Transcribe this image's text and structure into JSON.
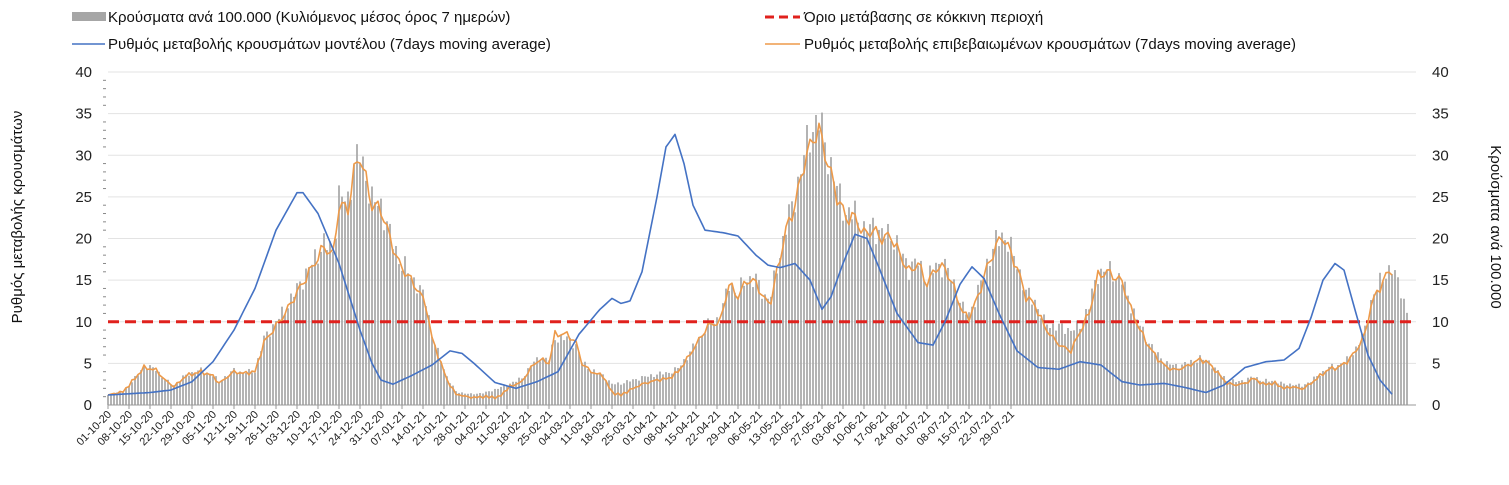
{
  "chart_data": {
    "type": "bar+line",
    "title": "",
    "ylabel_left": "Ρυθμός μεταβολής κρουσμάτων",
    "ylabel_right": "Κρούσματα ανά 100.000",
    "ylim": [
      0,
      40
    ],
    "yticks": [
      "0",
      "5",
      "10",
      "15",
      "20",
      "25",
      "30",
      "35",
      "40"
    ],
    "legend": {
      "bars": "Κρούσματα ανά 100.000 (Κυλιόμενος μέσος όρος 7 ημερών)",
      "threshold": "Όριο μετάβασης σε κόκκινη περιοχή",
      "model": "Ρυθμός μεταβολής κρουσμάτων μοντέλου (7days moving average)",
      "confirmed": "Ρυθμός μεταβολής επιβεβαιωμένων κρουσμάτων (7days moving average)"
    },
    "colors": {
      "bars": "#a6a6a6",
      "threshold": "#e0211d",
      "model": "#4472c4",
      "confirmed": "#ed9a4a"
    },
    "threshold": 10,
    "x_labels": [
      "01-10-20",
      "08-10-20",
      "15-10-20",
      "22-10-20",
      "29-10-20",
      "05-11-20",
      "12-11-20",
      "19-11-20",
      "26-11-20",
      "03-12-20",
      "10-12-20",
      "17-12-20",
      "24-12-20",
      "31-12-20",
      "07-01-21",
      "14-01-21",
      "21-01-21",
      "28-01-21",
      "04-02-21",
      "11-02-21",
      "18-02-21",
      "25-02-21",
      "04-03-21",
      "11-03-21",
      "18-03-21",
      "25-03-21",
      "01-04-21",
      "08-04-21",
      "15-04-21",
      "22-04-21",
      "29-04-21",
      "06-05-21",
      "13-05-21",
      "20-05-21",
      "27-05-21",
      "03-06-21",
      "10-06-21",
      "17-06-21",
      "24-06-21",
      "01-07-21",
      "08-07-21",
      "15-07-21",
      "22-07-21",
      "29-07-21"
    ],
    "model_anchors": [
      [
        0,
        1.2
      ],
      [
        14,
        1.5
      ],
      [
        21,
        1.8
      ],
      [
        28,
        2.8
      ],
      [
        35,
        5.2
      ],
      [
        42,
        9
      ],
      [
        49,
        14
      ],
      [
        56,
        21
      ],
      [
        63,
        25.5
      ],
      [
        65,
        25.5
      ],
      [
        70,
        23
      ],
      [
        77,
        17
      ],
      [
        84,
        9
      ],
      [
        88,
        5
      ],
      [
        91,
        3
      ],
      [
        95,
        2.5
      ],
      [
        101,
        3.5
      ],
      [
        108,
        4.8
      ],
      [
        114,
        6.5
      ],
      [
        118,
        6.2
      ],
      [
        122,
        5
      ],
      [
        129,
        2.7
      ],
      [
        136,
        2
      ],
      [
        143,
        2.8
      ],
      [
        150,
        4
      ],
      [
        157,
        8.5
      ],
      [
        164,
        11.5
      ],
      [
        168,
        12.8
      ],
      [
        171,
        12.2
      ],
      [
        174,
        12.5
      ],
      [
        178,
        16
      ],
      [
        183,
        25
      ],
      [
        186,
        31
      ],
      [
        189,
        32.5
      ],
      [
        192,
        29
      ],
      [
        195,
        24
      ],
      [
        199,
        21
      ],
      [
        205,
        20.7
      ],
      [
        210,
        20.3
      ],
      [
        216,
        18
      ],
      [
        220,
        16.8
      ],
      [
        224,
        16.5
      ],
      [
        229,
        17
      ],
      [
        234,
        15
      ],
      [
        238,
        11.5
      ],
      [
        241,
        13
      ],
      [
        245,
        17
      ],
      [
        249,
        20.5
      ],
      [
        253,
        20
      ],
      [
        257,
        16.5
      ],
      [
        263,
        11
      ],
      [
        270,
        7.5
      ],
      [
        275,
        7.2
      ],
      [
        279,
        10
      ],
      [
        284,
        14.5
      ],
      [
        288,
        16.6
      ],
      [
        292,
        15.2
      ],
      [
        297,
        11
      ],
      [
        303,
        6.5
      ],
      [
        310,
        4.5
      ],
      [
        317,
        4.3
      ],
      [
        324,
        5.2
      ],
      [
        331,
        4.8
      ],
      [
        338,
        2.8
      ],
      [
        344,
        2.4
      ],
      [
        352,
        2.6
      ],
      [
        359,
        2.1
      ],
      [
        366,
        1.5
      ],
      [
        372,
        2.4
      ],
      [
        379,
        4.5
      ],
      [
        386,
        5.2
      ],
      [
        392,
        5.4
      ],
      [
        397,
        6.8
      ],
      [
        401,
        10.5
      ],
      [
        405,
        15
      ],
      [
        409,
        17
      ],
      [
        412,
        16.2
      ],
      [
        416,
        11
      ],
      [
        420,
        6
      ],
      [
        424,
        3
      ],
      [
        428,
        1.3
      ]
    ],
    "confirmed_anchors": [
      [
        0,
        1.2
      ],
      [
        5,
        1.6
      ],
      [
        9,
        3.2
      ],
      [
        12,
        4.5
      ],
      [
        16,
        4.2
      ],
      [
        19,
        3
      ],
      [
        22,
        2.2
      ],
      [
        26,
        3.5
      ],
      [
        31,
        4
      ],
      [
        35,
        3.5
      ],
      [
        37,
        2.6
      ],
      [
        42,
        4
      ],
      [
        45,
        3.8
      ],
      [
        49,
        4
      ],
      [
        52,
        7.5
      ],
      [
        56,
        9.5
      ],
      [
        59,
        11
      ],
      [
        63,
        13.5
      ],
      [
        68,
        16.5
      ],
      [
        72,
        19
      ],
      [
        75,
        18
      ],
      [
        77,
        24
      ],
      [
        80,
        23.5
      ],
      [
        82,
        28
      ],
      [
        84,
        30
      ],
      [
        86,
        27
      ],
      [
        88,
        24
      ],
      [
        91,
        23.5
      ],
      [
        94,
        20
      ],
      [
        97,
        17
      ],
      [
        100,
        15.5
      ],
      [
        103,
        14
      ],
      [
        106,
        12
      ],
      [
        108,
        8
      ],
      [
        110,
        6
      ],
      [
        113,
        3
      ],
      [
        116,
        1.3
      ],
      [
        121,
        0.9
      ],
      [
        126,
        1
      ],
      [
        130,
        0.9
      ],
      [
        134,
        2.2
      ],
      [
        138,
        2.8
      ],
      [
        141,
        4.5
      ],
      [
        144,
        5.5
      ],
      [
        147,
        5
      ],
      [
        149,
        8.5
      ],
      [
        153,
        8.5
      ],
      [
        156,
        7.5
      ],
      [
        158,
        5
      ],
      [
        161,
        4
      ],
      [
        165,
        3.5
      ],
      [
        168,
        1.5
      ],
      [
        171,
        1.2
      ],
      [
        174,
        1.8
      ],
      [
        178,
        2.5
      ],
      [
        183,
        3
      ],
      [
        187,
        3.2
      ],
      [
        190,
        4
      ],
      [
        193,
        5.5
      ],
      [
        197,
        7.8
      ],
      [
        200,
        9.5
      ],
      [
        204,
        10
      ],
      [
        207,
        14.5
      ],
      [
        210,
        13
      ],
      [
        213,
        15
      ],
      [
        216,
        14.7
      ],
      [
        219,
        12.5
      ],
      [
        221,
        12.5
      ],
      [
        223,
        16
      ],
      [
        226,
        21
      ],
      [
        229,
        24
      ],
      [
        232,
        29
      ],
      [
        235,
        32
      ],
      [
        237,
        33
      ],
      [
        240,
        29
      ],
      [
        243,
        25
      ],
      [
        246,
        22.5
      ],
      [
        249,
        22.5
      ],
      [
        252,
        20.5
      ],
      [
        255,
        21
      ],
      [
        258,
        20
      ],
      [
        261,
        20.3
      ],
      [
        264,
        18
      ],
      [
        267,
        16
      ],
      [
        270,
        17
      ],
      [
        273,
        14.5
      ],
      [
        276,
        16.5
      ],
      [
        279,
        16.5
      ],
      [
        282,
        14
      ],
      [
        285,
        11
      ],
      [
        287,
        10.5
      ],
      [
        290,
        13
      ],
      [
        293,
        16.5
      ],
      [
        296,
        19
      ],
      [
        298,
        20.3
      ],
      [
        300,
        19
      ],
      [
        303,
        16.5
      ],
      [
        306,
        13
      ],
      [
        309,
        12
      ],
      [
        312,
        9.5
      ],
      [
        315,
        8
      ],
      [
        318,
        7
      ],
      [
        321,
        6.5
      ],
      [
        324,
        8.8
      ],
      [
        327,
        11
      ],
      [
        330,
        15.5
      ],
      [
        333,
        16
      ],
      [
        336,
        15.3
      ],
      [
        338,
        14.8
      ],
      [
        341,
        11.5
      ],
      [
        344,
        9
      ],
      [
        347,
        7
      ],
      [
        350,
        5.5
      ],
      [
        353,
        4.5
      ],
      [
        356,
        4.2
      ],
      [
        360,
        4.7
      ],
      [
        364,
        5.5
      ],
      [
        367,
        5
      ],
      [
        370,
        3.8
      ],
      [
        373,
        2.6
      ],
      [
        376,
        2.4
      ],
      [
        379,
        2.6
      ],
      [
        382,
        3.2
      ],
      [
        385,
        2.5
      ],
      [
        389,
        2.6
      ],
      [
        392,
        2
      ],
      [
        395,
        2.2
      ],
      [
        398,
        1.9
      ],
      [
        401,
        2.6
      ],
      [
        404,
        3.5
      ],
      [
        407,
        4.3
      ],
      [
        410,
        4.5
      ],
      [
        413,
        5.2
      ],
      [
        416,
        6.5
      ],
      [
        419,
        8.5
      ],
      [
        421,
        12
      ],
      [
        423,
        13.5
      ],
      [
        426,
        15.5
      ],
      [
        428,
        16.3
      ]
    ],
    "bar_anchors": [
      [
        0,
        1.2
      ],
      [
        5,
        1.6
      ],
      [
        9,
        3.2
      ],
      [
        12,
        4.7
      ],
      [
        16,
        4.3
      ],
      [
        19,
        3
      ],
      [
        22,
        2.4
      ],
      [
        26,
        3.6
      ],
      [
        31,
        4.2
      ],
      [
        35,
        3.6
      ],
      [
        37,
        2.8
      ],
      [
        42,
        4.2
      ],
      [
        45,
        3.9
      ],
      [
        49,
        4.1
      ],
      [
        52,
        8
      ],
      [
        56,
        10
      ],
      [
        59,
        11.5
      ],
      [
        63,
        14
      ],
      [
        68,
        17
      ],
      [
        72,
        19.5
      ],
      [
        75,
        18.5
      ],
      [
        77,
        25
      ],
      [
        80,
        24.5
      ],
      [
        82,
        29
      ],
      [
        84,
        30
      ],
      [
        86,
        27.5
      ],
      [
        88,
        24.5
      ],
      [
        91,
        24
      ],
      [
        94,
        20.5
      ],
      [
        97,
        17.5
      ],
      [
        100,
        16
      ],
      [
        103,
        14.5
      ],
      [
        106,
        12.5
      ],
      [
        108,
        8.5
      ],
      [
        110,
        6.3
      ],
      [
        113,
        3.4
      ],
      [
        116,
        1.6
      ],
      [
        121,
        1.3
      ],
      [
        126,
        1.5
      ],
      [
        130,
        2
      ],
      [
        134,
        2.6
      ],
      [
        138,
        3.2
      ],
      [
        141,
        4.8
      ],
      [
        144,
        5.7
      ],
      [
        147,
        5.5
      ],
      [
        149,
        8
      ],
      [
        153,
        8
      ],
      [
        156,
        7.2
      ],
      [
        158,
        5.2
      ],
      [
        161,
        4.2
      ],
      [
        165,
        3.6
      ],
      [
        168,
        2.5
      ],
      [
        171,
        2.6
      ],
      [
        174,
        2.9
      ],
      [
        178,
        3.3
      ],
      [
        183,
        3.7
      ],
      [
        187,
        3.9
      ],
      [
        190,
        4.4
      ],
      [
        193,
        5.8
      ],
      [
        197,
        8
      ],
      [
        200,
        9.6
      ],
      [
        204,
        10.5
      ],
      [
        207,
        14.5
      ],
      [
        210,
        13.5
      ],
      [
        213,
        15.2
      ],
      [
        216,
        15
      ],
      [
        219,
        13
      ],
      [
        221,
        13.2
      ],
      [
        223,
        16.5
      ],
      [
        226,
        21.5
      ],
      [
        229,
        25
      ],
      [
        232,
        30
      ],
      [
        235,
        33.5
      ],
      [
        237,
        34.3
      ],
      [
        240,
        30
      ],
      [
        243,
        26
      ],
      [
        246,
        23
      ],
      [
        249,
        23
      ],
      [
        252,
        21
      ],
      [
        255,
        21.5
      ],
      [
        258,
        20.5
      ],
      [
        261,
        20.5
      ],
      [
        264,
        18.5
      ],
      [
        267,
        16.5
      ],
      [
        270,
        17.2
      ],
      [
        273,
        15
      ],
      [
        276,
        16.8
      ],
      [
        279,
        16.7
      ],
      [
        282,
        14.5
      ],
      [
        285,
        11.5
      ],
      [
        287,
        11
      ],
      [
        290,
        13.5
      ],
      [
        293,
        17
      ],
      [
        296,
        19.5
      ],
      [
        298,
        20.5
      ],
      [
        300,
        19.5
      ],
      [
        303,
        17
      ],
      [
        306,
        13.5
      ],
      [
        309,
        12.5
      ],
      [
        312,
        10
      ],
      [
        315,
        9.5
      ],
      [
        318,
        9.3
      ],
      [
        321,
        9
      ],
      [
        324,
        9.5
      ],
      [
        327,
        12
      ],
      [
        330,
        15.8
      ],
      [
        333,
        16.3
      ],
      [
        336,
        15.5
      ],
      [
        338,
        15
      ],
      [
        341,
        12
      ],
      [
        344,
        9.5
      ],
      [
        347,
        7.5
      ],
      [
        350,
        6
      ],
      [
        353,
        5
      ],
      [
        356,
        4.7
      ],
      [
        360,
        5
      ],
      [
        364,
        5.6
      ],
      [
        367,
        5.2
      ],
      [
        370,
        4
      ],
      [
        373,
        3
      ],
      [
        376,
        2.8
      ],
      [
        379,
        3
      ],
      [
        382,
        3.4
      ],
      [
        385,
        2.9
      ],
      [
        389,
        2.9
      ],
      [
        392,
        2.5
      ],
      [
        395,
        2.5
      ],
      [
        398,
        2.3
      ],
      [
        401,
        2.9
      ],
      [
        404,
        3.7
      ],
      [
        407,
        4.5
      ],
      [
        410,
        4.8
      ],
      [
        413,
        5.4
      ],
      [
        416,
        6.8
      ],
      [
        419,
        9
      ],
      [
        421,
        12.5
      ],
      [
        423,
        14
      ],
      [
        426,
        16
      ],
      [
        428,
        16.3
      ],
      [
        431,
        14
      ],
      [
        433,
        11
      ]
    ],
    "n_days": 428,
    "threshold_days": [
      0,
      436
    ]
  }
}
